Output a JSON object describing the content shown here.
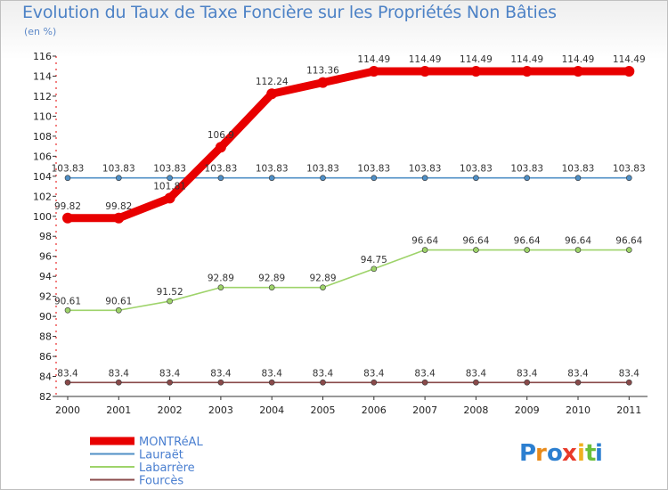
{
  "title": "Evolution du Taux de Taxe Foncière sur les Propriétés Non Bâties",
  "subtitle": "(en %)",
  "logo": {
    "letters": [
      "P",
      "r",
      "o",
      "x",
      "i",
      "t",
      "i"
    ],
    "colors": [
      "#2c7fd0",
      "#e88a1a",
      "#2c7fd0",
      "#e83a2a",
      "#f0b020",
      "#6abf3a",
      "#2c7fd0"
    ]
  },
  "chart_data": {
    "type": "line",
    "title": "Evolution du Taux de Taxe Foncière sur les Propriétés Non Bâties",
    "ylabel": "(en %)",
    "xlabel": "",
    "categories": [
      "2000",
      "2001",
      "2002",
      "2003",
      "2004",
      "2005",
      "2006",
      "2007",
      "2008",
      "2009",
      "2010",
      "2011"
    ],
    "ylim": [
      82,
      116
    ],
    "yticks": [
      82,
      84,
      86,
      88,
      90,
      92,
      94,
      96,
      98,
      100,
      102,
      104,
      106,
      108,
      110,
      112,
      114,
      116
    ],
    "legend_position": "bottom-left",
    "series": [
      {
        "name": "MONTRéAL",
        "color": "#e80000",
        "labels": [
          "99.82",
          "99.82",
          "101.81",
          "106.9",
          "112.24",
          "113.36",
          "114.49",
          "114.49",
          "114.49",
          "114.49",
          "114.49",
          "114.49"
        ],
        "values": [
          99.82,
          99.82,
          101.81,
          106.9,
          112.24,
          113.36,
          114.49,
          114.49,
          114.49,
          114.49,
          114.49,
          114.49
        ]
      },
      {
        "name": "Lauraët",
        "color": "#4f8fc6",
        "labels": [
          "103.83",
          "103.83",
          "103.83",
          "103.83",
          "103.83",
          "103.83",
          "103.83",
          "103.83",
          "103.83",
          "103.83",
          "103.83",
          "103.83"
        ],
        "values": [
          103.83,
          103.83,
          103.83,
          103.83,
          103.83,
          103.83,
          103.83,
          103.83,
          103.83,
          103.83,
          103.83,
          103.83
        ]
      },
      {
        "name": "Labarrère",
        "color": "#9ed36a",
        "labels": [
          "90.61",
          "90.61",
          "91.52",
          "92.89",
          "92.89",
          "92.89",
          "94.75",
          "96.64",
          "96.64",
          "96.64",
          "96.64",
          "96.64"
        ],
        "values": [
          90.61,
          90.61,
          91.52,
          92.89,
          92.89,
          92.89,
          94.75,
          96.64,
          96.64,
          96.64,
          96.64,
          96.64
        ]
      },
      {
        "name": "Fourcès",
        "color": "#8a4a4a",
        "labels": [
          "83.4",
          "83.4",
          "83.4",
          "83.4",
          "83.4",
          "83.4",
          "83.4",
          "83.4",
          "83.4",
          "83.4",
          "83.4",
          "83.4"
        ],
        "values": [
          83.4,
          83.4,
          83.4,
          83.4,
          83.4,
          83.4,
          83.4,
          83.4,
          83.4,
          83.4,
          83.4,
          83.4
        ]
      }
    ]
  }
}
